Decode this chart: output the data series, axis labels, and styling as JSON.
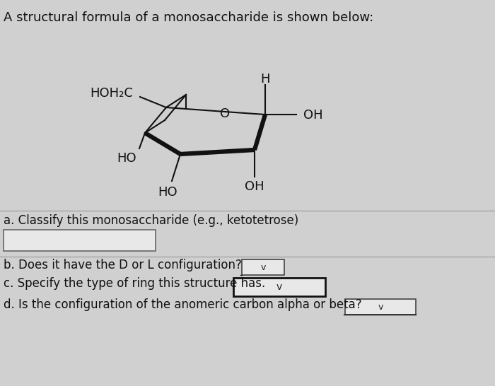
{
  "background_color": "#d0d0d0",
  "title_text": "A structural formula of a monosaccharide is shown below:",
  "question_a": "a. Classify this monosaccharide (e.g., ketotetrose)",
  "question_b": "b. Does it have the D or L configuration?",
  "question_c": "c. Specify the type of ring this structure has.",
  "question_d": "d. Is the configuration of the anomeric carbon alpha or beta?",
  "struct_color": "#111111",
  "font_family": "DejaVu Sans",
  "font_size_title": 13,
  "font_size_label": 13,
  "font_size_q": 12
}
